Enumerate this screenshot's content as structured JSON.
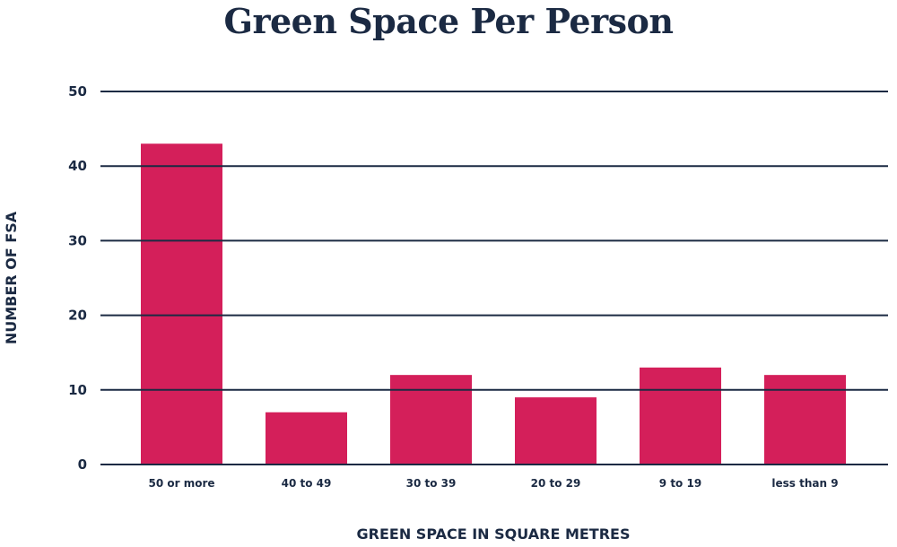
{
  "chart_data": {
    "type": "bar",
    "title": "Green Space Per Person",
    "xlabel": "GREEN SPACE IN SQUARE METRES",
    "ylabel": "NUMBER OF FSA",
    "categories": [
      "50 or more",
      "40 to 49",
      "30 to 39",
      "20 to 29",
      "9 to 19",
      "less than 9"
    ],
    "values": [
      43,
      7,
      12,
      9,
      13,
      12
    ],
    "ylim": [
      0,
      50
    ],
    "yticks": [
      0,
      10,
      20,
      30,
      40,
      50
    ],
    "grid": true,
    "bar_color": "#d41f5a",
    "text_color": "#1b2a43",
    "grid_color": "#1b2a43"
  }
}
